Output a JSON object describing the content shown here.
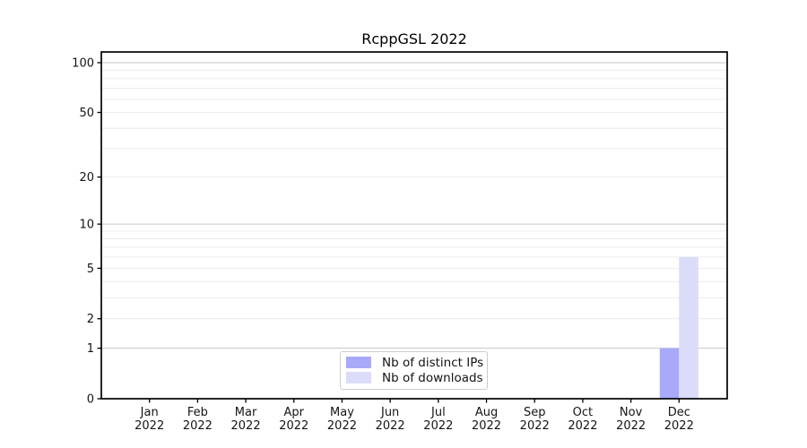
{
  "chart_data": {
    "type": "bar",
    "title": "RcppGSL 2022",
    "categories": [
      "Jan",
      "Feb",
      "Mar",
      "Apr",
      "May",
      "Jun",
      "Jul",
      "Aug",
      "Sep",
      "Oct",
      "Nov",
      "Dec"
    ],
    "category_year": "2022",
    "series": [
      {
        "name": "Nb of distinct IPs",
        "color": "#a9a9fa",
        "values": [
          0,
          0,
          0,
          0,
          0,
          0,
          0,
          0,
          0,
          0,
          0,
          1
        ]
      },
      {
        "name": "Nb of downloads",
        "color": "#dbdbfa",
        "values": [
          0,
          0,
          0,
          0,
          0,
          0,
          0,
          0,
          0,
          0,
          0,
          6
        ]
      }
    ],
    "xlabel": "",
    "ylabel": "",
    "yscale": "log1p",
    "ylim": [
      0,
      116
    ],
    "ytick_values": [
      0,
      1,
      2,
      5,
      10,
      20,
      50,
      100
    ],
    "ytick_labels": [
      "0",
      "1",
      "2",
      "5",
      "10",
      "20",
      "50",
      "100"
    ],
    "major_grid_values": [
      1,
      10,
      100
    ],
    "minor_grid_values": [
      2,
      3,
      4,
      5,
      6,
      7,
      8,
      9,
      20,
      30,
      40,
      50,
      60,
      70,
      80,
      90
    ],
    "grid": "on",
    "legend_position": "lower center",
    "colors": {
      "major_grid": "#c6c6c6",
      "minor_grid": "#ececec",
      "spine": "#000000",
      "text": "#141414",
      "background": "#ffffff"
    }
  }
}
